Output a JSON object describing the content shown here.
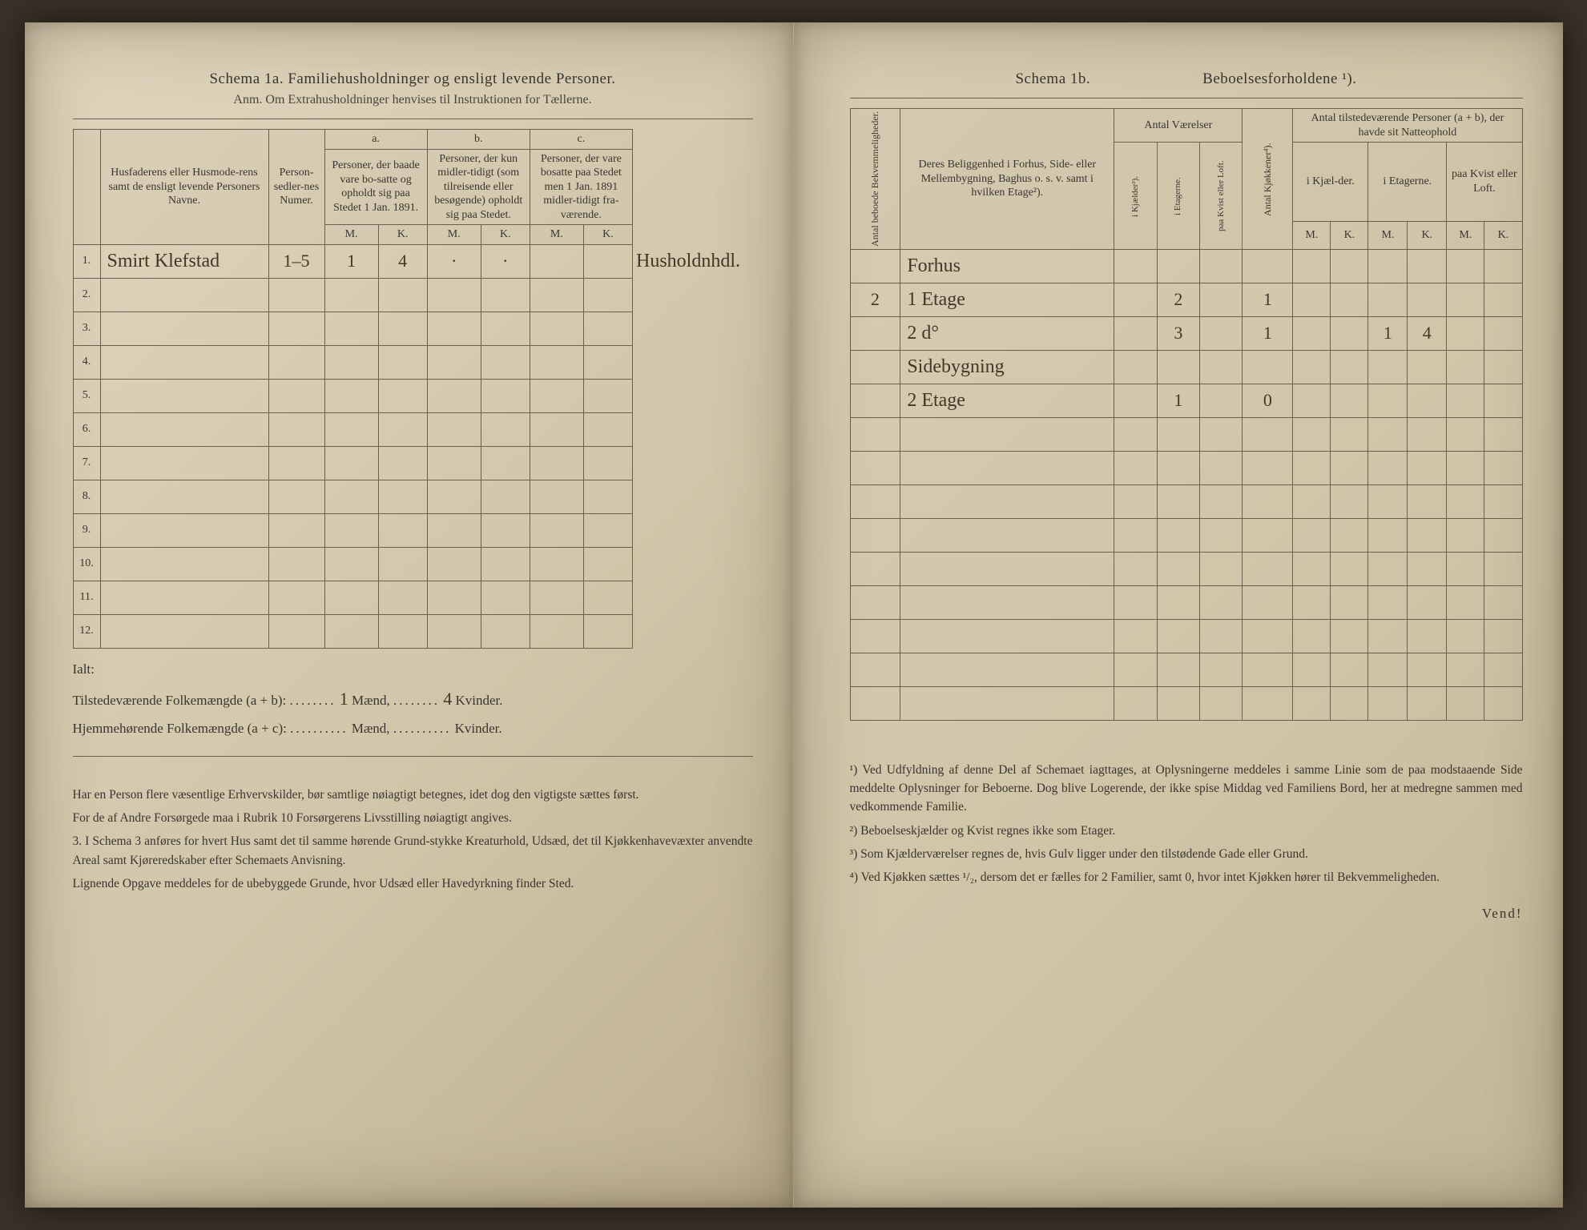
{
  "left": {
    "title": "Schema 1a.  Familiehusholdninger og ensligt levende Personer.",
    "subtitle": "Anm. Om Extrahusholdninger henvises til Instruktionen for Tællerne.",
    "headers": {
      "col1": "Husfaderens eller Husmode-rens samt de ensligt levende Personers Navne.",
      "col2": "Person-sedler-nes Numer.",
      "grp_a": "a.",
      "grp_a_text": "Personer, der baade vare bo-satte og opholdt sig paa Stedet 1 Jan. 1891.",
      "grp_b": "b.",
      "grp_b_text": "Personer, der kun midler-tidigt (som tilreisende eller besøgende) opholdt sig paa Stedet.",
      "grp_c": "c.",
      "grp_c_text": "Personer, der vare bosatte paa Stedet men 1 Jan. 1891 midler-tidigt fra-værende.",
      "m": "M.",
      "k": "K."
    },
    "rows": [
      {
        "n": "1.",
        "name": "Smirt Klefstad",
        "pnum": "1–5",
        "am": "1",
        "ak": "4",
        "bm": "·",
        "bk": "·",
        "note": "Husholdnhdl."
      },
      {
        "n": "2."
      },
      {
        "n": "3."
      },
      {
        "n": "4."
      },
      {
        "n": "5."
      },
      {
        "n": "6."
      },
      {
        "n": "7."
      },
      {
        "n": "8."
      },
      {
        "n": "9."
      },
      {
        "n": "10."
      },
      {
        "n": "11."
      },
      {
        "n": "12."
      }
    ],
    "totals_label": "Ialt:",
    "tot_line1_l": "Tilstedeværende Folkemængde (a + b):",
    "tot_line1_m": "Mænd,",
    "tot_line1_mval": "1",
    "tot_line1_kval": "4",
    "tot_line1_k": "Kvinder.",
    "tot_line2_l": "Hjemmehørende Folkemængde (a + c):",
    "tot_line2_m": "Mænd,",
    "tot_line2_k": "Kvinder.",
    "foot": [
      "Har en Person flere væsentlige Erhvervskilder, bør samtlige nøiagtigt betegnes, idet dog den vigtigste sættes først.",
      "For de af Andre Forsørgede maa i Rubrik 10 Forsørgerens Livsstilling nøiagtigt angives.",
      "3.  I Schema 3 anføres for hvert Hus samt det til samme hørende Grund-stykke Kreaturhold, Udsæd, det til Kjøkkenhavevæxter anvendte Areal samt Kjøreredskaber efter Schemaets Anvisning.",
      "Lignende Opgave meddeles for de ubebyggede Grunde, hvor Udsæd eller Havedyrkning finder Sted."
    ]
  },
  "right": {
    "title": "Schema 1b.",
    "title2": "Beboelsesforholdene ¹).",
    "headers": {
      "col1": "Antal beboede Bekvemmeligheder.",
      "col2": "Deres Beliggenhed i Forhus, Side- eller Mellembygning, Baghus o. s. v. samt i hvilken Etage²).",
      "grp_rooms": "Antal Værelser",
      "rk": "i Kjælder³).",
      "re": "i Etagerne.",
      "rl": "paa Kvist eller Loft.",
      "kitchen": "Antal Kjøkkener⁴).",
      "grp_pers": "Antal tilstedeværende Personer (a + b), der havde sit Natteophold",
      "pk": "i Kjæl-der.",
      "pe": "i Etagerne.",
      "pl": "paa Kvist eller Loft.",
      "m": "M.",
      "k": "K."
    },
    "rows": [
      {
        "n": "",
        "loc": "Forhus",
        "re": "",
        "kit": ""
      },
      {
        "n": "2",
        "loc": "1 Etage",
        "re": "2",
        "kit": "1",
        "pem": "",
        "pek": ""
      },
      {
        "n": "",
        "loc": "2  d°",
        "re": "3",
        "kit": "1",
        "pem": "1",
        "pek": "4"
      },
      {
        "n": "",
        "loc": "Sidebygning",
        "re": "",
        "kit": ""
      },
      {
        "n": "",
        "loc": "2 Etage",
        "re": "1",
        "kit": "0"
      }
    ],
    "foot": [
      "¹) Ved Udfyldning af denne Del af Schemaet iagttages, at Oplysningerne meddeles i samme Linie som de paa modstaaende Side meddelte Oplysninger for Beboerne. Dog blive Logerende, der ikke spise Middag ved Familiens Bord, her at medregne sammen med vedkommende Familie.",
      "²) Beboelseskjælder og Kvist regnes ikke som Etager.",
      "³) Som Kjælderværelser regnes de, hvis Gulv ligger under den tilstødende Gade eller Grund.",
      "⁴) Ved Kjøkken sættes ¹/₂, dersom det er fælles for 2 Familier, samt 0, hvor intet Kjøkken hører til Bekvemmeligheden."
    ],
    "vend": "Vend!"
  }
}
